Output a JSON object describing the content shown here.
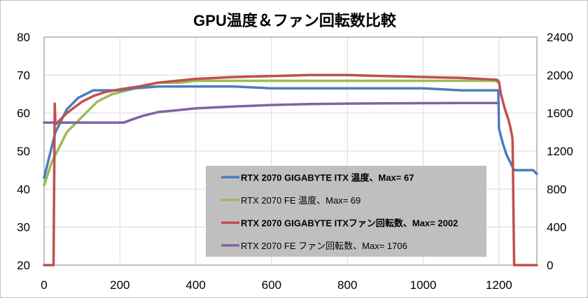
{
  "chart_data": {
    "type": "line",
    "title": "GPU温度＆ファン回転数比較",
    "xlim": [
      0,
      1300
    ],
    "ylim_left": [
      20,
      80
    ],
    "ylim_right": [
      0,
      2400
    ],
    "x_ticks": [
      0,
      200,
      400,
      600,
      800,
      1000,
      1200
    ],
    "y_left_ticks": [
      20,
      30,
      40,
      50,
      60,
      70,
      80
    ],
    "y_right_ticks": [
      0,
      400,
      800,
      1200,
      1600,
      2000,
      2400
    ],
    "grid": true,
    "legend_position": "center-right",
    "series": [
      {
        "name": "RTX 2070 GIGABYTE ITX 温度、Max= 67",
        "axis": "left",
        "color": "#4a7ebb",
        "x": [
          0,
          5,
          10,
          20,
          30,
          40,
          50,
          60,
          70,
          80,
          90,
          100,
          110,
          120,
          130,
          150,
          180,
          200,
          240,
          300,
          400,
          500,
          600,
          700,
          800,
          900,
          1000,
          1100,
          1150,
          1198,
          1199,
          1200,
          1210,
          1220,
          1235,
          1240,
          1245,
          1250,
          1270,
          1290,
          1300
        ],
        "y": [
          43,
          45,
          47,
          51,
          55,
          57,
          59,
          61,
          62,
          63,
          64,
          64.5,
          65,
          65.5,
          66,
          66,
          66,
          66,
          66.5,
          67,
          67,
          67,
          66.5,
          66.5,
          66.5,
          66.5,
          66.5,
          66,
          66,
          66,
          62,
          56,
          52,
          49,
          46,
          45,
          45,
          45,
          45,
          45,
          44
        ]
      },
      {
        "name": "RTX 2070 FE 温度、Max= 69",
        "axis": "left",
        "color": "#9bbb59",
        "x": [
          0,
          10,
          20,
          30,
          40,
          50,
          60,
          70,
          80,
          90,
          100,
          110,
          120,
          130,
          140,
          150,
          160,
          170,
          180,
          200,
          220,
          240,
          260,
          280,
          300,
          330,
          360,
          400,
          500,
          600,
          800,
          1000,
          1100,
          1190,
          1200
        ],
        "y": [
          41,
          44,
          47,
          49,
          51,
          53,
          55,
          56,
          57,
          58,
          59,
          60,
          61,
          62,
          63,
          63.5,
          64,
          64.5,
          65,
          65.5,
          66,
          66.5,
          67,
          67.5,
          68,
          68,
          68,
          68.5,
          68.5,
          68.5,
          68.5,
          68.5,
          68.5,
          68.5,
          68
        ]
      },
      {
        "name": "RTX 2070 GIGABYTE ITXファン回転数、Max= 2002",
        "axis": "right",
        "color": "#c0504d",
        "x": [
          0,
          25,
          28,
          30,
          35,
          40,
          50,
          60,
          80,
          100,
          130,
          160,
          200,
          250,
          300,
          400,
          500,
          600,
          700,
          800,
          900,
          1000,
          1100,
          1150,
          1195,
          1200,
          1205,
          1215,
          1225,
          1230,
          1235,
          1236,
          1240,
          1270,
          1300
        ],
        "y": [
          0,
          0,
          1700,
          1480,
          1500,
          1520,
          1560,
          1600,
          1660,
          1720,
          1780,
          1820,
          1850,
          1880,
          1920,
          1960,
          1980,
          1990,
          2000,
          2000,
          1990,
          1980,
          1970,
          1960,
          1950,
          1930,
          1800,
          1650,
          1530,
          1450,
          1350,
          1300,
          0,
          0,
          0
        ]
      },
      {
        "name": "RTX 2070 FE ファン回転数、Max= 1706",
        "axis": "right",
        "color": "#8064a2",
        "x": [
          0,
          100,
          210,
          230,
          260,
          300,
          400,
          500,
          600,
          700,
          800,
          900,
          1000,
          1100,
          1190,
          1200
        ],
        "y": [
          1500,
          1500,
          1500,
          1530,
          1570,
          1610,
          1650,
          1670,
          1685,
          1695,
          1700,
          1702,
          1704,
          1706,
          1706,
          1706
        ]
      }
    ]
  }
}
